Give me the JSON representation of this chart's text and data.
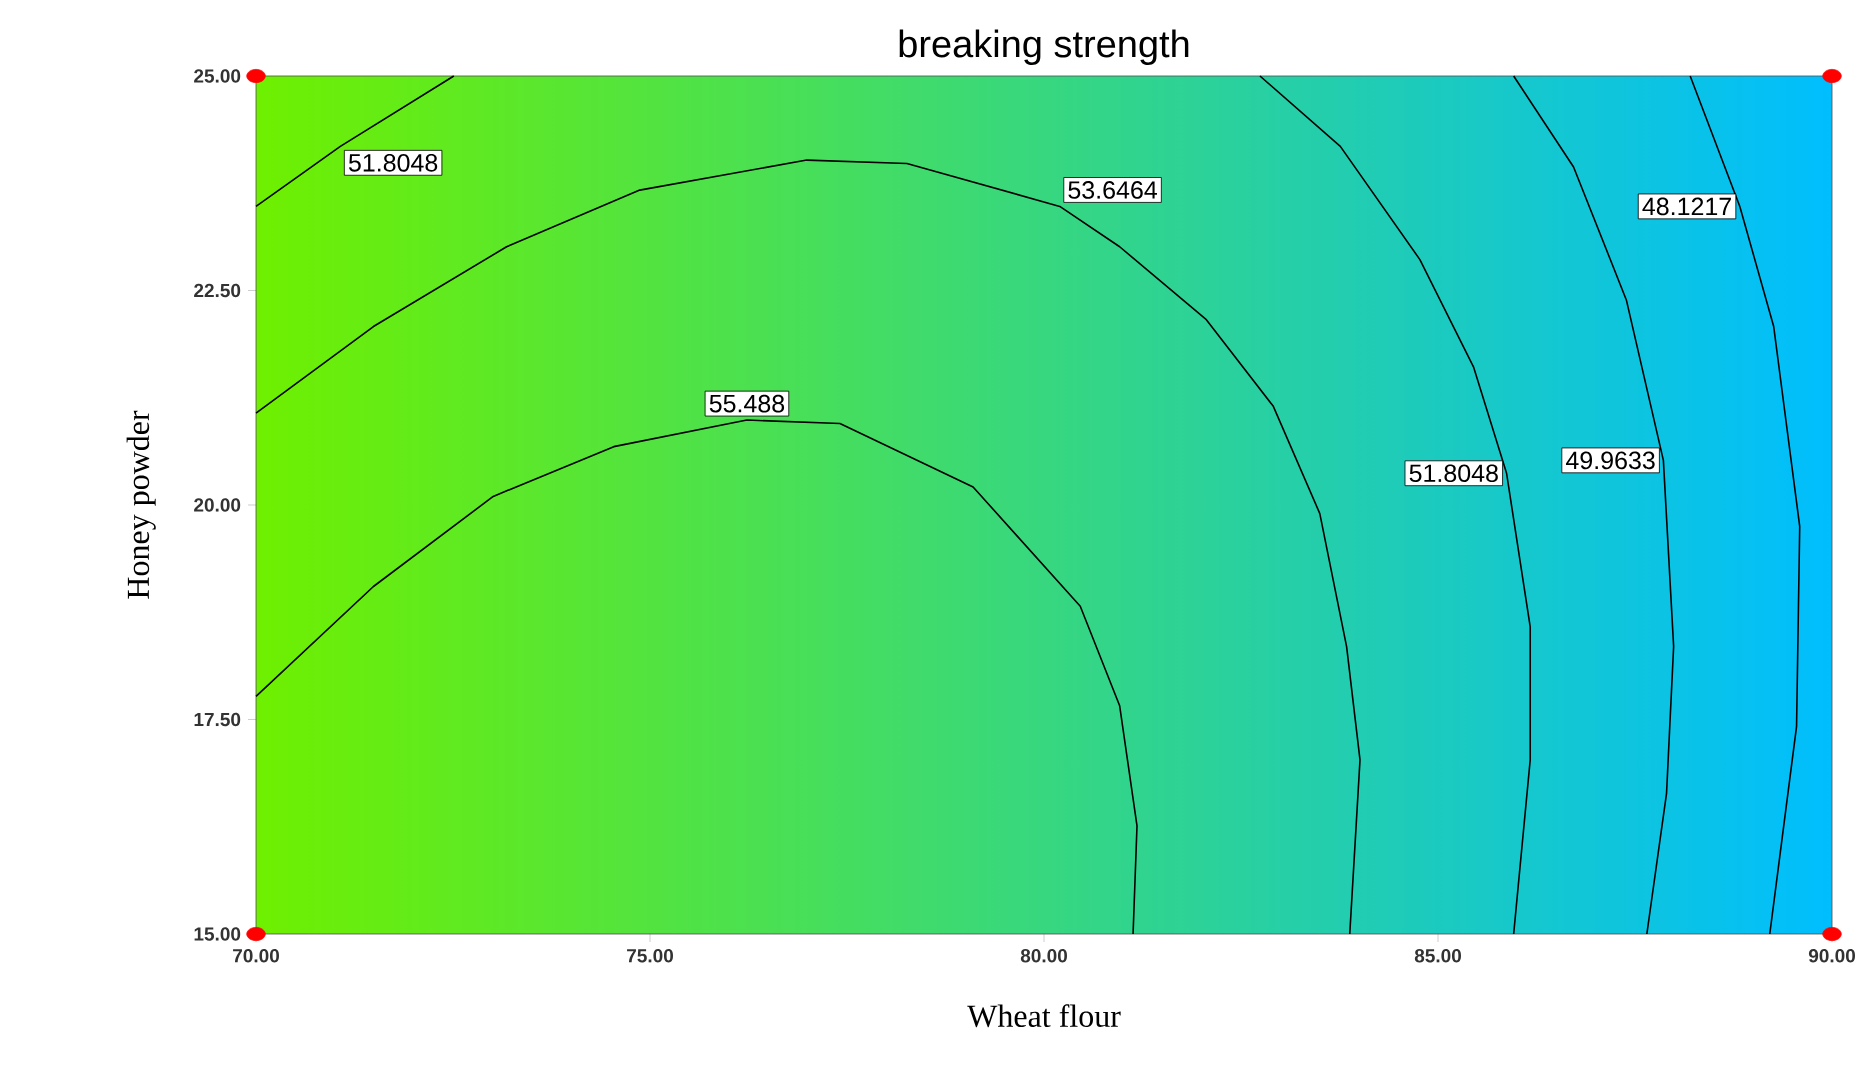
{
  "chart_data": {
    "type": "line",
    "title": "breaking strength",
    "xlabel": "Wheat flour",
    "ylabel": "Honey powder",
    "xlim": [
      70,
      90
    ],
    "ylim": [
      15,
      25
    ],
    "xticks": [
      {
        "value": 70,
        "label": "70.00"
      },
      {
        "value": 75,
        "label": "75.00"
      },
      {
        "value": 80,
        "label": "80.00"
      },
      {
        "value": 85,
        "label": "85.00"
      },
      {
        "value": 90,
        "label": "90.00"
      }
    ],
    "yticks": [
      {
        "value": 15,
        "label": "15.00"
      },
      {
        "value": 17.5,
        "label": "17.50"
      },
      {
        "value": 20,
        "label": "20.00"
      },
      {
        "value": 22.5,
        "label": "22.50"
      },
      {
        "value": 25,
        "label": "25.00"
      }
    ],
    "grid": false,
    "marker": "none",
    "line_style": "solid",
    "series": [
      {
        "name": "55.488",
        "color": "#000000",
        "x": [
          70,
          71.49,
          73.01,
          74.54,
          76.23,
          77.41,
          79.1,
          80.46,
          80.96,
          81.18,
          81.13
        ],
        "values": [
          17.77,
          19.05,
          20.1,
          20.68,
          20.99,
          20.95,
          20.21,
          18.82,
          17.66,
          16.26,
          15.0
        ]
      },
      {
        "name": "53.6464",
        "color": "#000000",
        "x": [
          70,
          71.49,
          73.18,
          74.87,
          76.99,
          78.26,
          80.2,
          80.96,
          82.06,
          82.91,
          83.5,
          83.84,
          84.01,
          83.88
        ],
        "values": [
          21.07,
          22.08,
          23.01,
          23.67,
          24.02,
          23.98,
          23.48,
          23.01,
          22.16,
          21.15,
          19.9,
          18.35,
          17.03,
          15.0
        ]
      },
      {
        "name": "51.8048",
        "color": "#000000",
        "x": [
          70,
          71.07,
          72.51
        ],
        "values": [
          23.48,
          24.18,
          25.0
        ]
      },
      {
        "name": "51.8048",
        "color": "#000000",
        "x": [
          82.74,
          83.76,
          84.77,
          85.45,
          85.87,
          86.17,
          86.17,
          85.96
        ],
        "values": [
          25.0,
          24.18,
          22.86,
          21.61,
          20.37,
          18.58,
          17.03,
          15.0
        ]
      },
      {
        "name": "49.9633",
        "color": "#000000",
        "x": [
          85.96,
          86.72,
          87.39,
          87.86,
          87.99,
          87.9,
          87.65
        ],
        "values": [
          25.0,
          23.94,
          22.39,
          20.52,
          18.35,
          16.64,
          15.0
        ]
      },
      {
        "name": "48.1217",
        "color": "#000000",
        "x": [
          88.2,
          88.83,
          89.26,
          89.59,
          89.55,
          89.21
        ],
        "values": [
          25.0,
          23.48,
          22.08,
          19.75,
          17.42,
          15.0
        ]
      },
      {
        "type": "scatter",
        "marker": "circle",
        "color": "#ff0000",
        "x": [
          70,
          70,
          90,
          90
        ],
        "values": [
          25,
          15,
          25,
          15
        ]
      }
    ]
  }
}
